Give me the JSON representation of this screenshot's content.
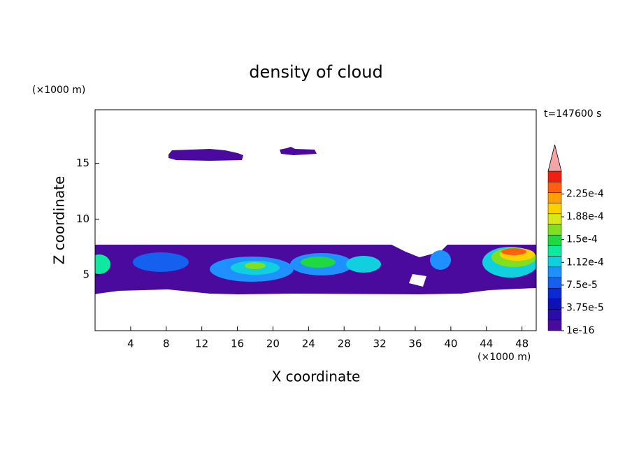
{
  "chart_data": {
    "type": "contour",
    "title": "density of cloud",
    "x_label": "X coordinate",
    "y_label": "Z coordinate",
    "x_unit": "(×1000 m)",
    "y_unit": "(×1000 m)",
    "annotation": "t=147600 s",
    "xlim": [
      0,
      49.6
    ],
    "xticks": [
      4,
      8,
      12,
      16,
      20,
      24,
      28,
      32,
      36,
      40,
      44,
      48
    ],
    "ylim": [
      0,
      19.8
    ],
    "yticks": [
      5,
      10,
      15
    ],
    "colorbar": {
      "lim": [
        1e-16,
        0.0002625
      ],
      "colors": [
        "#4b0a9e",
        "#2a0ca8",
        "#1010b8",
        "#0a2ad4",
        "#1560ee",
        "#1e90ff",
        "#10d0e0",
        "#10e8a0",
        "#20d840",
        "#80e020",
        "#d8e818",
        "#ffd000",
        "#ffa000",
        "#ff6010",
        "#f02010"
      ],
      "extend_color": "#f4a6a6",
      "ticks": [
        1e-16,
        {
          "value": 3.75e-05,
          "label": "3.75e-5"
        },
        {
          "value": 7.5e-05,
          "label": "7.5e-5"
        },
        {
          "value": 0.0001125,
          "label": "1.12e-4"
        },
        {
          "value": 0.00015,
          "label": "1.5e-4"
        },
        {
          "value": 0.0001875,
          "label": "1.88e-4"
        },
        {
          "value": 0.000225,
          "label": "2.25e-4"
        }
      ]
    }
  }
}
